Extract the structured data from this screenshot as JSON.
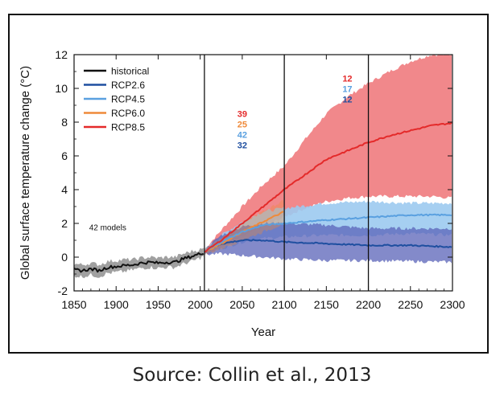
{
  "caption": "Source: Collin et al., 2013",
  "chart_data": {
    "type": "line",
    "title": "",
    "xlabel": "Year",
    "ylabel": "Global surface temperature change (°C)",
    "xlim": [
      1850,
      2300
    ],
    "ylim": [
      -2,
      12
    ],
    "xticks": [
      1850,
      1900,
      1950,
      2000,
      2050,
      2100,
      2150,
      2200,
      2250,
      2300
    ],
    "yticks": [
      -2,
      0,
      2,
      4,
      6,
      8,
      10,
      12
    ],
    "vertical_lines": [
      2005,
      2100,
      2200
    ],
    "annotation": "42 models",
    "series": [
      {
        "name": "historical",
        "color": "#111111",
        "x": [
          1850,
          1860,
          1870,
          1880,
          1890,
          1900,
          1910,
          1920,
          1930,
          1940,
          1950,
          1960,
          1970,
          1980,
          1990,
          2000,
          2005
        ],
        "values": [
          -0.75,
          -0.8,
          -0.7,
          -0.8,
          -0.6,
          -0.55,
          -0.5,
          -0.45,
          -0.35,
          -0.3,
          -0.35,
          -0.3,
          -0.3,
          -0.1,
          0.05,
          0.2,
          0.3
        ],
        "lower": [
          -1.1,
          -1.15,
          -1.05,
          -1.15,
          -0.95,
          -0.9,
          -0.85,
          -0.75,
          -0.65,
          -0.6,
          -0.65,
          -0.6,
          -0.6,
          -0.4,
          -0.25,
          -0.05,
          0.1
        ],
        "upper": [
          -0.4,
          -0.45,
          -0.35,
          -0.45,
          -0.25,
          -0.2,
          -0.15,
          -0.15,
          -0.05,
          0.0,
          -0.05,
          0.0,
          0.0,
          0.2,
          0.35,
          0.45,
          0.5
        ]
      },
      {
        "name": "RCP2.6",
        "color": "#1f4fa0",
        "band_color": "#5a63b8",
        "x": [
          2005,
          2025,
          2050,
          2075,
          2100,
          2150,
          2200,
          2250,
          2300
        ],
        "values": [
          0.3,
          0.8,
          1.0,
          1.0,
          0.9,
          0.8,
          0.7,
          0.7,
          0.6
        ],
        "lower": [
          0.15,
          0.2,
          0.1,
          0.0,
          -0.1,
          -0.2,
          -0.2,
          -0.25,
          -0.3
        ],
        "upper": [
          0.45,
          1.3,
          1.8,
          2.0,
          2.0,
          1.9,
          1.7,
          1.7,
          1.7
        ]
      },
      {
        "name": "RCP4.5",
        "color": "#5aa0e0",
        "band_color": "#9ccaf0",
        "x": [
          2005,
          2025,
          2050,
          2075,
          2100,
          2150,
          2200,
          2250,
          2300
        ],
        "values": [
          0.3,
          0.9,
          1.5,
          1.9,
          2.0,
          2.2,
          2.35,
          2.5,
          2.5
        ],
        "lower": [
          0.15,
          0.5,
          0.9,
          1.1,
          1.2,
          1.3,
          1.3,
          1.4,
          1.3
        ],
        "upper": [
          0.45,
          1.3,
          2.1,
          2.7,
          2.9,
          3.2,
          3.3,
          3.2,
          3.2
        ]
      },
      {
        "name": "RCP6.0",
        "color": "#ef8a3a",
        "x": [
          2005,
          2025,
          2050,
          2075,
          2100
        ],
        "values": [
          0.3,
          0.8,
          1.5,
          2.1,
          2.7
        ],
        "lower": [
          0.15,
          0.5,
          1.0,
          1.5,
          2.0
        ],
        "upper": [
          0.45,
          1.1,
          2.0,
          2.7,
          3.4
        ]
      },
      {
        "name": "RCP8.5",
        "color": "#e42a2a",
        "band_color": "#f08285",
        "x": [
          2005,
          2025,
          2050,
          2075,
          2100,
          2125,
          2150,
          2175,
          2200,
          2225,
          2250,
          2275,
          2300
        ],
        "values": [
          0.3,
          1.0,
          2.0,
          3.0,
          4.0,
          4.9,
          5.8,
          6.3,
          6.8,
          7.2,
          7.5,
          7.8,
          7.95
        ],
        "lower": [
          0.15,
          0.6,
          1.2,
          1.8,
          2.4,
          2.9,
          3.3,
          3.5,
          3.6,
          3.6,
          3.6,
          3.6,
          3.5
        ],
        "upper": [
          0.45,
          1.6,
          3.0,
          4.3,
          5.4,
          7.0,
          8.5,
          9.5,
          10.3,
          11.0,
          11.6,
          12.0,
          12.0
        ]
      }
    ],
    "model_counts": [
      {
        "x": 2050,
        "values": [
          "39",
          "25",
          "42",
          "32"
        ],
        "colors": [
          "#e42a2a",
          "#ef8a3a",
          "#5aa0e0",
          "#1f4fa0"
        ]
      },
      {
        "x": 2175,
        "values": [
          "12",
          "17",
          "12"
        ],
        "colors": [
          "#e42a2a",
          "#5aa0e0",
          "#1f4fa0"
        ]
      }
    ],
    "legend": {
      "placement": "top-left",
      "items": [
        "historical",
        "RCP2.6",
        "RCP4.5",
        "RCP6.0",
        "RCP8.5"
      ]
    }
  }
}
